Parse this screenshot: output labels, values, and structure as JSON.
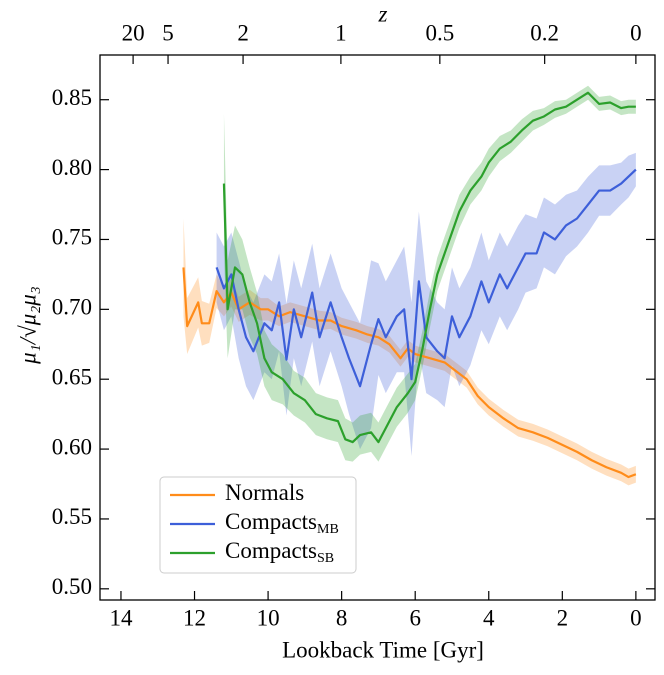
{
  "chart_data": {
    "type": "line",
    "xlabel": "Lookback Time [Gyr]",
    "ylabel": "μ₁/√μ₂μ₃",
    "x2label": "z",
    "xlim": [
      14.57,
      -0.52
    ],
    "ylim": [
      0.492,
      0.882
    ],
    "xticks": [
      14,
      12,
      10,
      8,
      6,
      4,
      2,
      0
    ],
    "yticks": [
      {
        "value": 0.5,
        "label": "0.50"
      },
      {
        "value": 0.55,
        "label": "0.55"
      },
      {
        "value": 0.6,
        "label": "0.60"
      },
      {
        "value": 0.65,
        "label": "0.65"
      },
      {
        "value": 0.7,
        "label": "0.70"
      },
      {
        "value": 0.75,
        "label": "0.75"
      },
      {
        "value": 0.8,
        "label": "0.80"
      },
      {
        "value": 0.85,
        "label": "0.85"
      }
    ],
    "x2ticks": [
      {
        "value": 13.67,
        "label": "20"
      },
      {
        "value": 12.72,
        "label": "5"
      },
      {
        "value": 10.68,
        "label": "2"
      },
      {
        "value": 8.02,
        "label": "1"
      },
      {
        "value": 5.33,
        "label": "0.5"
      },
      {
        "value": 2.48,
        "label": "0.2"
      },
      {
        "value": 0,
        "label": "0"
      }
    ],
    "legend": "lower left",
    "series": [
      {
        "name": "Normals",
        "color": "#ff8c1a",
        "x": [
          12.3,
          12.2,
          11.9,
          11.8,
          11.6,
          11.4,
          11.2,
          11.0,
          10.8,
          10.5,
          10.2,
          10.0,
          9.7,
          9.4,
          9.0,
          8.6,
          8.3,
          8.0,
          7.6,
          7.3,
          7.0,
          6.7,
          6.4,
          6.2,
          6.0,
          5.6,
          5.2,
          4.9,
          4.6,
          4.3,
          4.0,
          3.6,
          3.2,
          2.8,
          2.4,
          2.0,
          1.6,
          1.2,
          0.8,
          0.4,
          0.2,
          0
        ],
        "values": [
          0.73,
          0.688,
          0.705,
          0.69,
          0.69,
          0.713,
          0.705,
          0.712,
          0.7,
          0.705,
          0.7,
          0.7,
          0.695,
          0.698,
          0.695,
          0.692,
          0.692,
          0.688,
          0.685,
          0.682,
          0.68,
          0.675,
          0.665,
          0.672,
          0.668,
          0.665,
          0.662,
          0.656,
          0.65,
          0.638,
          0.63,
          0.622,
          0.615,
          0.612,
          0.608,
          0.603,
          0.598,
          0.592,
          0.587,
          0.583,
          0.58,
          0.582
        ],
        "err": [
          0.035,
          0.02,
          0.018,
          0.016,
          0.014,
          0.012,
          0.01,
          0.01,
          0.009,
          0.009,
          0.008,
          0.008,
          0.007,
          0.007,
          0.007,
          0.007,
          0.006,
          0.006,
          0.006,
          0.006,
          0.006,
          0.006,
          0.006,
          0.006,
          0.006,
          0.006,
          0.006,
          0.006,
          0.006,
          0.006,
          0.006,
          0.006,
          0.006,
          0.006,
          0.006,
          0.006,
          0.006,
          0.006,
          0.006,
          0.006,
          0.006,
          0.006
        ]
      },
      {
        "name": "Compacts",
        "name_sub": "MB",
        "color": "#3d5fd9",
        "x": [
          11.4,
          11.2,
          11.0,
          10.8,
          10.6,
          10.4,
          10.1,
          9.9,
          9.7,
          9.5,
          9.3,
          9.1,
          8.8,
          8.6,
          8.3,
          8.0,
          7.8,
          7.5,
          7.2,
          7.0,
          6.8,
          6.5,
          6.3,
          6.1,
          5.9,
          5.7,
          5.4,
          5.2,
          5.0,
          4.8,
          4.5,
          4.2,
          4.0,
          3.7,
          3.5,
          3.2,
          3.0,
          2.7,
          2.5,
          2.2,
          1.9,
          1.6,
          1.3,
          1.0,
          0.7,
          0.4,
          0.2,
          0
        ],
        "values": [
          0.73,
          0.715,
          0.725,
          0.7,
          0.68,
          0.67,
          0.69,
          0.685,
          0.705,
          0.664,
          0.7,
          0.68,
          0.712,
          0.68,
          0.705,
          0.68,
          0.665,
          0.645,
          0.675,
          0.693,
          0.68,
          0.695,
          0.7,
          0.65,
          0.72,
          0.68,
          0.67,
          0.665,
          0.695,
          0.68,
          0.695,
          0.72,
          0.705,
          0.725,
          0.715,
          0.73,
          0.74,
          0.74,
          0.755,
          0.75,
          0.76,
          0.765,
          0.775,
          0.785,
          0.785,
          0.79,
          0.795,
          0.8
        ],
        "err": [
          0.025,
          0.03,
          0.03,
          0.035,
          0.035,
          0.035,
          0.035,
          0.035,
          0.035,
          0.04,
          0.035,
          0.035,
          0.035,
          0.035,
          0.035,
          0.035,
          0.04,
          0.045,
          0.06,
          0.04,
          0.04,
          0.04,
          0.045,
          0.055,
          0.05,
          0.04,
          0.035,
          0.035,
          0.035,
          0.035,
          0.035,
          0.035,
          0.03,
          0.03,
          0.03,
          0.03,
          0.028,
          0.025,
          0.025,
          0.025,
          0.022,
          0.02,
          0.02,
          0.018,
          0.018,
          0.015,
          0.015,
          0.012
        ]
      },
      {
        "name": "Compacts",
        "name_sub": "SB",
        "color": "#2ca02c",
        "x": [
          11.2,
          11.1,
          10.9,
          10.7,
          10.5,
          10.3,
          10.1,
          9.9,
          9.6,
          9.3,
          9.0,
          8.7,
          8.4,
          8.1,
          7.9,
          7.7,
          7.5,
          7.2,
          7.0,
          6.8,
          6.5,
          6.2,
          6.0,
          5.8,
          5.6,
          5.4,
          5.2,
          5.0,
          4.8,
          4.5,
          4.2,
          4.0,
          3.7,
          3.4,
          3.1,
          2.8,
          2.5,
          2.2,
          1.9,
          1.6,
          1.3,
          1.0,
          0.7,
          0.4,
          0.2,
          0
        ],
        "values": [
          0.79,
          0.7,
          0.73,
          0.725,
          0.705,
          0.69,
          0.665,
          0.655,
          0.65,
          0.64,
          0.635,
          0.625,
          0.622,
          0.62,
          0.607,
          0.605,
          0.61,
          0.612,
          0.605,
          0.615,
          0.63,
          0.64,
          0.648,
          0.672,
          0.7,
          0.725,
          0.74,
          0.755,
          0.77,
          0.785,
          0.795,
          0.805,
          0.815,
          0.82,
          0.828,
          0.835,
          0.838,
          0.843,
          0.845,
          0.85,
          0.855,
          0.847,
          0.848,
          0.844,
          0.845,
          0.845
        ],
        "err": [
          0.05,
          0.035,
          0.03,
          0.025,
          0.025,
          0.022,
          0.02,
          0.02,
          0.018,
          0.016,
          0.016,
          0.015,
          0.015,
          0.015,
          0.015,
          0.014,
          0.014,
          0.014,
          0.014,
          0.014,
          0.014,
          0.014,
          0.013,
          0.013,
          0.013,
          0.012,
          0.012,
          0.012,
          0.012,
          0.01,
          0.01,
          0.01,
          0.009,
          0.008,
          0.008,
          0.007,
          0.006,
          0.006,
          0.005,
          0.005,
          0.005,
          0.005,
          0.005,
          0.005,
          0.005,
          0.005
        ]
      }
    ]
  }
}
